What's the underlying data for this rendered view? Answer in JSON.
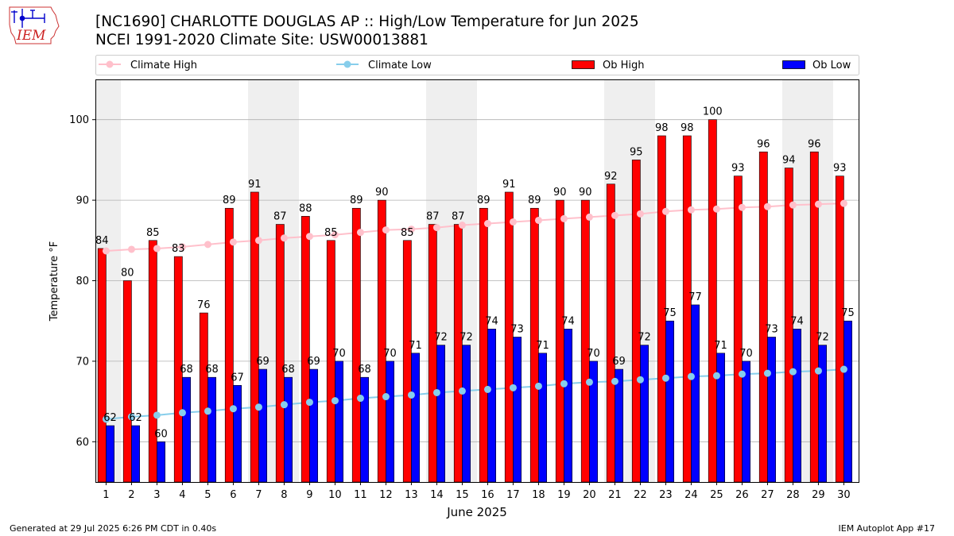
{
  "header": {
    "title_line1": "[NC1690] CHARLOTTE DOUGLAS AP :: High/Low Temperature for Jun 2025",
    "title_line2": "NCEI 1991-2020 Climate Site: USW00013881",
    "logo_text": "IEM"
  },
  "footer": {
    "left": "Generated at 29 Jul 2025 6:26 PM CDT in 0.40s",
    "right": "IEM Autoplot App #17"
  },
  "colors": {
    "climate_high": "#ffc0cb",
    "climate_low": "#87ceeb",
    "ob_high": "#ff0000",
    "ob_low": "#0000ff",
    "weekend_band": "#efefef",
    "grid": "#b0b0b0"
  },
  "chart_data": {
    "type": "bar",
    "xlabel": "June 2025",
    "ylabel": "Temperature °F",
    "ylim": [
      55,
      105
    ],
    "yticks": [
      60,
      70,
      80,
      90,
      100
    ],
    "grid": "horizontal",
    "legend_position": "top",
    "categories": [
      "1",
      "2",
      "3",
      "4",
      "5",
      "6",
      "7",
      "8",
      "9",
      "10",
      "11",
      "12",
      "13",
      "14",
      "15",
      "16",
      "17",
      "18",
      "19",
      "20",
      "21",
      "22",
      "23",
      "24",
      "25",
      "26",
      "27",
      "28",
      "29",
      "30"
    ],
    "weekend_days": [
      1,
      7,
      8,
      14,
      15,
      21,
      22,
      28,
      29
    ],
    "series": [
      {
        "name": "Climate High",
        "kind": "line",
        "values": [
          83.7,
          83.9,
          84.0,
          84.2,
          84.5,
          84.8,
          85.0,
          85.3,
          85.5,
          85.7,
          86.0,
          86.3,
          86.4,
          86.6,
          86.9,
          87.1,
          87.3,
          87.5,
          87.7,
          87.9,
          88.1,
          88.3,
          88.6,
          88.8,
          88.9,
          89.1,
          89.2,
          89.4,
          89.5,
          89.6
        ]
      },
      {
        "name": "Climate Low",
        "kind": "line",
        "values": [
          62.8,
          63.1,
          63.3,
          63.6,
          63.8,
          64.1,
          64.3,
          64.6,
          64.9,
          65.1,
          65.4,
          65.6,
          65.8,
          66.1,
          66.3,
          66.5,
          66.7,
          66.9,
          67.2,
          67.4,
          67.5,
          67.7,
          67.9,
          68.1,
          68.2,
          68.4,
          68.5,
          68.7,
          68.8,
          69.0
        ]
      },
      {
        "name": "Ob High",
        "kind": "bar",
        "values": [
          84,
          80,
          85,
          83,
          76,
          89,
          91,
          87,
          88,
          85,
          89,
          90,
          85,
          87,
          87,
          89,
          91,
          89,
          90,
          90,
          92,
          95,
          98,
          98,
          100,
          93,
          96,
          94,
          96,
          93
        ]
      },
      {
        "name": "Ob Low",
        "kind": "bar",
        "values": [
          62,
          62,
          60,
          68,
          68,
          67,
          69,
          68,
          69,
          70,
          68,
          70,
          71,
          72,
          72,
          74,
          73,
          71,
          74,
          70,
          69,
          72,
          75,
          77,
          71,
          70,
          73,
          74,
          72,
          75
        ]
      }
    ]
  }
}
